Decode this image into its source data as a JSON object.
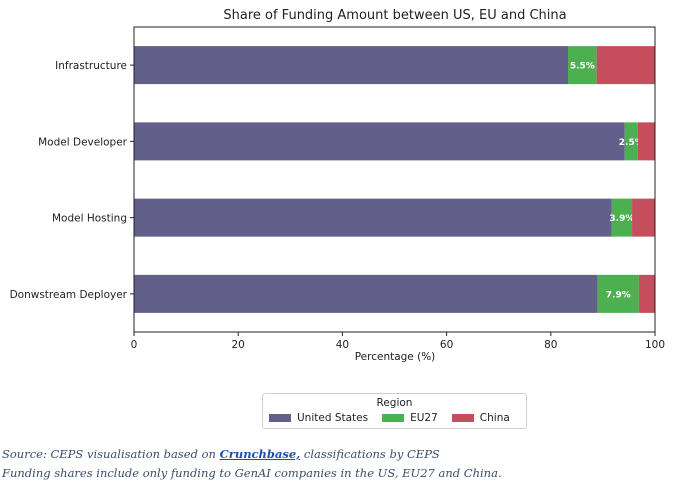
{
  "chart_data": {
    "type": "bar",
    "orientation": "horizontal",
    "stacked": true,
    "title": "Share of Funding Amount between US, EU and China",
    "xlabel": "Percentage (%)",
    "ylabel": "",
    "xlim": [
      0,
      100
    ],
    "xticks": [
      "0",
      "20",
      "40",
      "60",
      "80",
      "100"
    ],
    "categories": [
      "Infrastructure",
      "Model Developer",
      "Model Hosting",
      "Donwstream Deployer"
    ],
    "series": [
      {
        "name": "United States",
        "color": "#625f8b",
        "values": [
          83.3,
          94.2,
          91.7,
          89.0
        ]
      },
      {
        "name": "EU27",
        "color": "#4caf50",
        "values": [
          5.5,
          2.5,
          3.9,
          7.9
        ]
      },
      {
        "name": "China",
        "color": "#c44e5c",
        "values": [
          11.2,
          3.3,
          4.4,
          3.1
        ]
      }
    ],
    "data_labels": [
      {
        "category": "Infrastructure",
        "series": "EU27",
        "text": "5.5%"
      },
      {
        "category": "Model Developer",
        "series": "EU27",
        "text": "2.5%"
      },
      {
        "category": "Model Hosting",
        "series": "EU27",
        "text": "3.9%"
      },
      {
        "category": "Donwstream Deployer",
        "series": "EU27",
        "text": "7.9%"
      }
    ],
    "legend": {
      "title": "Region",
      "placement": "bottom-center"
    },
    "grid": false
  },
  "source": {
    "line1_prefix": "Source: CEPS visualisation based on ",
    "line1_link": "Crunchbase,",
    "line1_suffix": " classifications by CEPS",
    "line2": "Funding shares include only funding to GenAI companies in the US, EU27 and China."
  }
}
